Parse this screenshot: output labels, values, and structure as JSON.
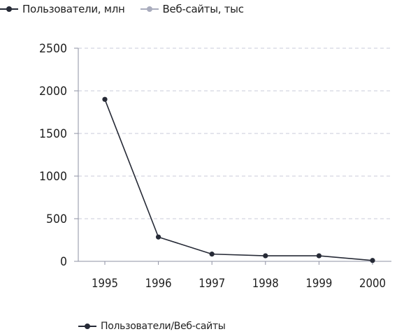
{
  "legend_top": [
    {
      "label": "Пользователи, млн",
      "color": "#262a36"
    },
    {
      "label": "Веб-сайты, тыс",
      "color": "#a9acbd"
    }
  ],
  "legend_bottom": {
    "label": "Пользователи/Веб-сайты",
    "color": "#262a36"
  },
  "chart_data": {
    "type": "line",
    "title": "",
    "xlabel": "",
    "ylabel": "",
    "categories": [
      "1995",
      "1996",
      "1997",
      "1998",
      "1999",
      "2000"
    ],
    "yticks": [
      "0",
      "500",
      "1000",
      "1500",
      "2000",
      "2500"
    ],
    "ylim": [
      0,
      2500
    ],
    "grid": true,
    "legend_position": "top-left and bottom",
    "series": [
      {
        "name": "Пользователи/Веб-сайты",
        "color": "#262a36",
        "values": [
          1900,
          285,
          85,
          65,
          65,
          10
        ]
      }
    ]
  }
}
